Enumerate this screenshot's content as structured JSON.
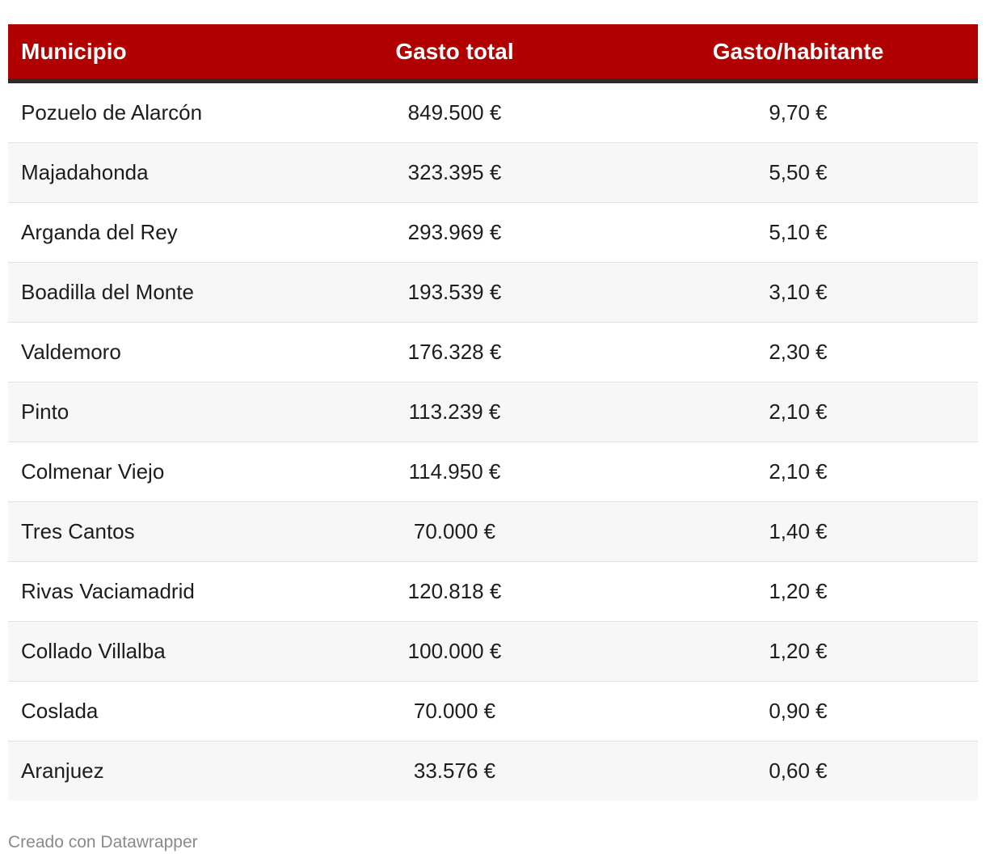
{
  "chart_data": {
    "type": "table",
    "columns": [
      "Municipio",
      "Gasto total",
      "Gasto/habitante"
    ],
    "rows": [
      {
        "municipio": "Pozuelo de Alarcón",
        "gasto_total": "849.500 €",
        "gasto_habitante": "9,70 €"
      },
      {
        "municipio": "Majadahonda",
        "gasto_total": "323.395 €",
        "gasto_habitante": "5,50 €"
      },
      {
        "municipio": "Arganda del Rey",
        "gasto_total": "293.969 €",
        "gasto_habitante": "5,10 €"
      },
      {
        "municipio": "Boadilla del Monte",
        "gasto_total": "193.539 €",
        "gasto_habitante": "3,10 €"
      },
      {
        "municipio": "Valdemoro",
        "gasto_total": "176.328 €",
        "gasto_habitante": "2,30 €"
      },
      {
        "municipio": "Pinto",
        "gasto_total": "113.239 €",
        "gasto_habitante": "2,10 €"
      },
      {
        "municipio": "Colmenar Viejo",
        "gasto_total": "114.950 €",
        "gasto_habitante": "2,10 €"
      },
      {
        "municipio": "Tres Cantos",
        "gasto_total": "70.000 €",
        "gasto_habitante": "1,40 €"
      },
      {
        "municipio": "Rivas Vaciamadrid",
        "gasto_total": "120.818 €",
        "gasto_habitante": "1,20 €"
      },
      {
        "municipio": "Collado Villalba",
        "gasto_total": "100.000 €",
        "gasto_habitante": "1,20 €"
      },
      {
        "municipio": "Coslada",
        "gasto_total": "70.000 €",
        "gasto_habitante": "0,90 €"
      },
      {
        "municipio": "Aranjuez",
        "gasto_total": "33.576 €",
        "gasto_habitante": "0,60 €"
      }
    ]
  },
  "footer": {
    "credit": "Creado con Datawrapper"
  },
  "colors": {
    "header_bg": "#b00000",
    "header_text": "#ffffff",
    "header_rule": "#2b2b2b",
    "row_alt": "#f7f7f7",
    "footer_text": "#8a8a8a"
  }
}
